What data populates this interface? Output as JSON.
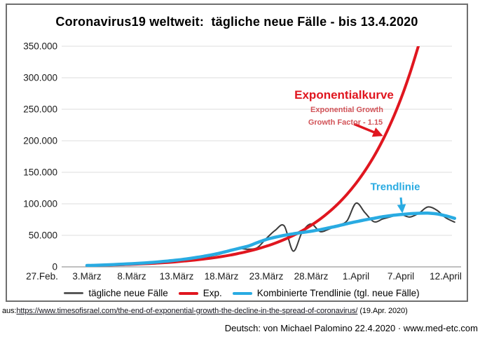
{
  "chart": {
    "title": "Coronavirus19 weltweit:  tägliche neue Fälle - bis 13.4.2020"
  },
  "chart_data": {
    "type": "line",
    "title": "Coronavirus19 weltweit: tägliche neue Fälle - bis 13.4.2020",
    "xlabel": "",
    "ylabel": "",
    "ylim": [
      0,
      350000
    ],
    "grid": "horizontal",
    "legend_position": "bottom",
    "y_tick_labels": [
      "0",
      "50.000",
      "100.000",
      "150.000",
      "200.000",
      "250.000",
      "300.000",
      "350.000"
    ],
    "x_tick_labels": [
      "27.Feb.",
      "3.März",
      "8.März",
      "13.März",
      "18.März",
      "23.März",
      "28.März",
      "1.April",
      "7.April",
      "12.April"
    ],
    "x_frequency": "daily",
    "x_data_start": "3.März 2020",
    "x_data_end": "13.April 2020",
    "series": [
      {
        "id": "daily-cases",
        "name": "tägliche neue Fälle",
        "color": "#3b3b3b",
        "stroke_width": 2,
        "values": [
          2000,
          2400,
          2800,
          3600,
          3900,
          4100,
          4700,
          5400,
          6600,
          8000,
          9600,
          11600,
          13200,
          14800,
          17600,
          21000,
          25500,
          29000,
          28000,
          30500,
          45000,
          58000,
          65000,
          25000,
          55000,
          68000,
          56000,
          60000,
          66000,
          73000,
          101000,
          86000,
          71500,
          76000,
          80000,
          83000,
          79000,
          85000,
          95000,
          90000,
          78000,
          71000
        ]
      },
      {
        "id": "exponential",
        "name": "Exp.",
        "color": "#e0161f",
        "stroke_width": 4,
        "growth_factor": 1.15,
        "values": [
          2000,
          2300,
          2645,
          3042,
          3498,
          4023,
          4626,
          5320,
          6118,
          7036,
          8091,
          9305,
          10701,
          12306,
          14152,
          16274,
          18716,
          21523,
          24751,
          28464,
          32734,
          37644,
          43290,
          49784,
          57251,
          65839,
          75715,
          87072,
          100133,
          115153,
          132426,
          152290,
          175133,
          201403,
          231614,
          266356,
          306309,
          352256
        ]
      },
      {
        "id": "trendline",
        "name": "Kombinierte Trendlinie (tgl. neue Fälle)",
        "color": "#29abe2",
        "stroke_width": 4.5,
        "values": [
          2200,
          2600,
          3100,
          3700,
          4300,
          5000,
          5800,
          6800,
          7900,
          9200,
          10700,
          12400,
          14400,
          16700,
          19300,
          22400,
          26000,
          29500,
          33000,
          38500,
          43500,
          47000,
          50000,
          52500,
          54500,
          56500,
          59000,
          62000,
          65000,
          68500,
          71500,
          74500,
          77000,
          79500,
          81500,
          83000,
          84200,
          85000,
          85200,
          84000,
          81000,
          77000
        ]
      }
    ],
    "annotations": {
      "exponential_label": "Exponentialkurve",
      "exponential_sub1": "Exponential Growth",
      "exponential_sub2": "Growth Factor - 1.15",
      "trend_label": "Trendlinie"
    }
  },
  "legend": {
    "items": [
      {
        "id": "daily-cases",
        "label": "tägliche neue Fälle",
        "color": "#595959",
        "thickness": 2.5
      },
      {
        "id": "exponential",
        "label": "Exp.",
        "color": "#e0161f",
        "thickness": 4
      },
      {
        "id": "trendline",
        "label": "Kombinierte Trendlinie (tgl. neue Fälle)",
        "color": "#29abe2",
        "thickness": 4
      }
    ]
  },
  "source": {
    "prefix": "aus:",
    "url": "https://www.timesofisrael.com/the-end-of-exponential-growth-the-decline-in-the-spread-of-coronavirus/",
    "suffix": " (19.Apr. 2020)",
    "credit": "Deutsch: von Michael Palomino 22.4.2020 · www.med-etc.com"
  }
}
